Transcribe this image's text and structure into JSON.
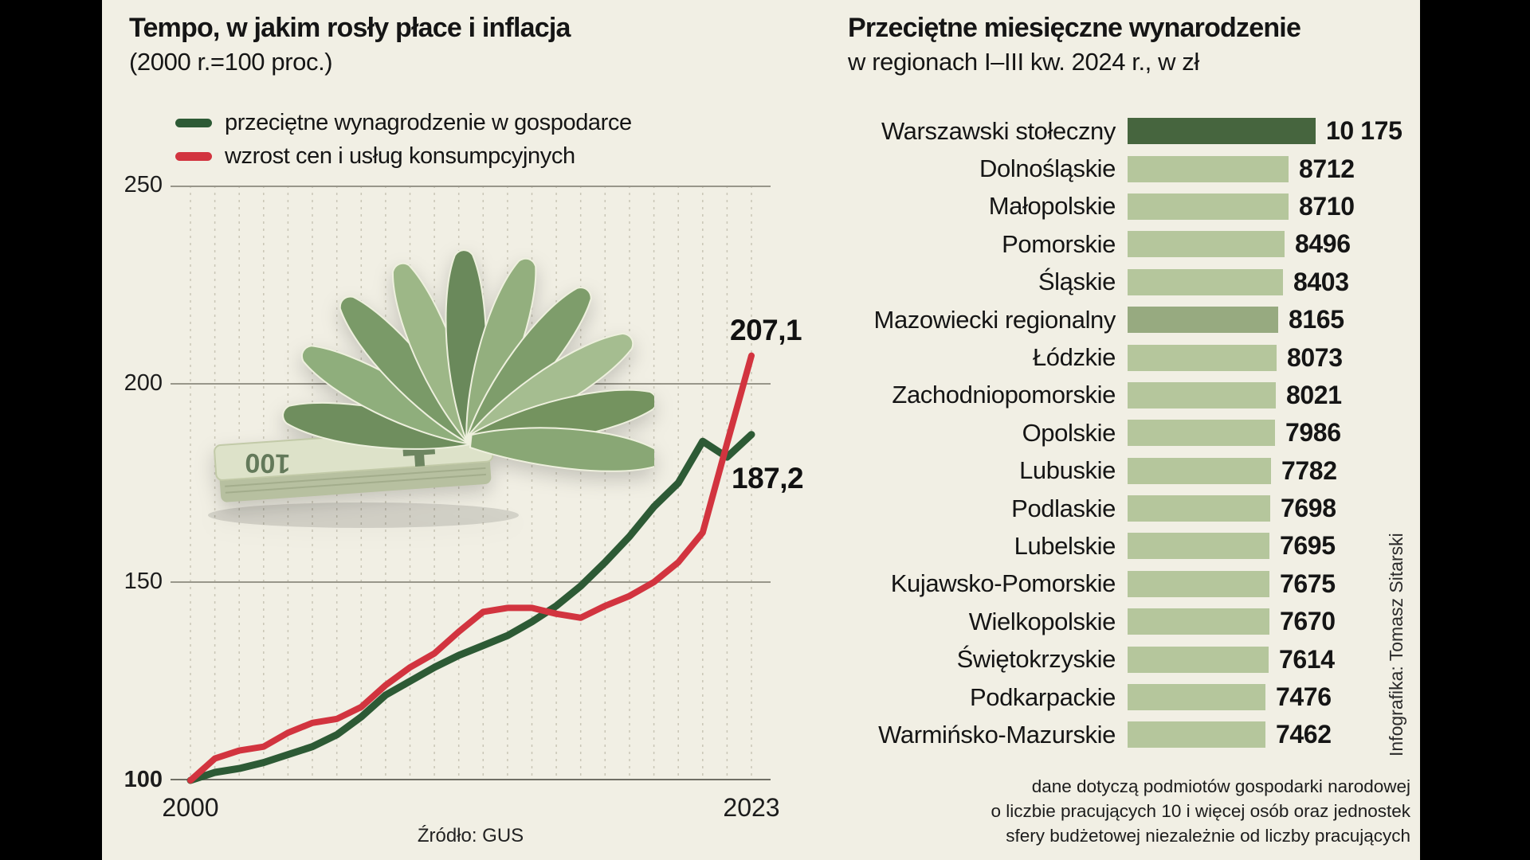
{
  "colors": {
    "background": "#f1efe4",
    "accent_green": "#2d5a35",
    "accent_red": "#d2343f",
    "bar_dark": "#46653e",
    "bar_medium": "#97aa80",
    "bar_light": "#b5c69c"
  },
  "chart_data": [
    {
      "type": "line",
      "title": "Tempo, w jakim rosły płace i inflacja",
      "subtitle": "(2000 r.=100 proc.)",
      "source": "Źródło: GUS",
      "x": [
        2000,
        2001,
        2002,
        2003,
        2004,
        2005,
        2006,
        2007,
        2008,
        2009,
        2010,
        2011,
        2012,
        2013,
        2014,
        2015,
        2016,
        2017,
        2018,
        2019,
        2020,
        2021,
        2022,
        2023
      ],
      "series": [
        {
          "name": "przeciętne wynagrodzenie w gospodarce",
          "color": "#2d5a35",
          "values": [
            100,
            102,
            103,
            104.5,
            106.5,
            108.5,
            111.5,
            116,
            121.5,
            125,
            128.5,
            131.5,
            134,
            136.5,
            140,
            144,
            149,
            155,
            161.5,
            169,
            175,
            185.5,
            181.5,
            187.2
          ]
        },
        {
          "name": "wzrost cen i usług konsumpcyjnych",
          "color": "#d2343f",
          "values": [
            100,
            105.5,
            107.5,
            108.5,
            112,
            114.5,
            115.5,
            118.5,
            124,
            128.5,
            132,
            137.5,
            142.5,
            143.5,
            143.5,
            142,
            141,
            144,
            146.5,
            150,
            155,
            162.5,
            185,
            207.1
          ]
        }
      ],
      "ylim": [
        100,
        250
      ],
      "yticks": [
        100,
        150,
        200,
        250
      ],
      "xtick_labels": [
        "2000",
        "2023"
      ],
      "end_labels": {
        "wages": "187,2",
        "inflation": "207,1"
      },
      "grid": {
        "horizontal": "solid",
        "vertical": "dashed-yearly"
      },
      "legend_position": "top-left"
    },
    {
      "type": "bar",
      "orientation": "horizontal",
      "title": "Przeciętne miesięczne wynarodzenie",
      "subtitle": "w regionach I–III kw. 2024 r., w zł",
      "categories": [
        "Warszawski stołeczny",
        "Dolnośląskie",
        "Małopolskie",
        "Pomorskie",
        "Śląskie",
        "Mazowiecki regionalny",
        "Łódzkie",
        "Zachodniopomorskie",
        "Opolskie",
        "Lubuskie",
        "Podlaskie",
        "Lubelskie",
        "Kujawsko-Pomorskie",
        "Wielkopolskie",
        "Świętokrzyskie",
        "Podkarpackie",
        "Warmińsko-Mazurskie"
      ],
      "values": [
        10175,
        8712,
        8710,
        8496,
        8403,
        8165,
        8073,
        8021,
        7986,
        7782,
        7698,
        7695,
        7675,
        7670,
        7614,
        7476,
        7462
      ],
      "value_labels": [
        "10 175",
        "8712",
        "8710",
        "8496",
        "8403",
        "8165",
        "8073",
        "8021",
        "7986",
        "7782",
        "7698",
        "7695",
        "7675",
        "7670",
        "7614",
        "7476",
        "7462"
      ],
      "bar_shades": [
        "dark",
        "light",
        "light",
        "light",
        "light",
        "medium",
        "light",
        "light",
        "light",
        "light",
        "light",
        "light",
        "light",
        "light",
        "light",
        "light",
        "light"
      ],
      "shade_colors": {
        "dark": "#46653e",
        "medium": "#97aa80",
        "light": "#b5c69c"
      },
      "xlim": [
        0,
        10175
      ]
    }
  ],
  "annotations": {
    "credit": "Infografika: Tomasz Sitarski",
    "footnote_lines": [
      "dane dotyczą podmiotów gospodarki narodowej",
      "o liczbie pracujących 10 i więcej osób oraz jednostek",
      "sfery budżetowej niezależnie od liczby pracujących"
    ]
  }
}
